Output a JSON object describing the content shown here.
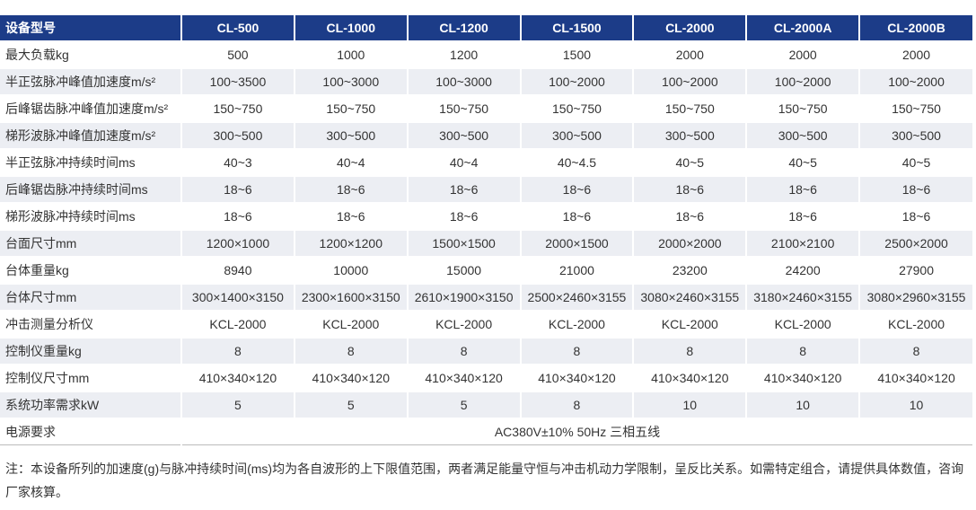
{
  "table": {
    "header": [
      "设备型号",
      "CL-500",
      "CL-1000",
      "CL-1200",
      "CL-1500",
      "CL-2000",
      "CL-2000A",
      "CL-2000B"
    ],
    "rows": [
      [
        "最大负载kg",
        "500",
        "1000",
        "1200",
        "1500",
        "2000",
        "2000",
        "2000"
      ],
      [
        "半正弦脉冲峰值加速度m/s²",
        "100~3500",
        "100~3000",
        "100~3000",
        "100~2000",
        "100~2000",
        "100~2000",
        "100~2000"
      ],
      [
        "后峰锯齿脉冲峰值加速度m/s²",
        "150~750",
        "150~750",
        "150~750",
        "150~750",
        "150~750",
        "150~750",
        "150~750"
      ],
      [
        "梯形波脉冲峰值加速度m/s²",
        "300~500",
        "300~500",
        "300~500",
        "300~500",
        "300~500",
        "300~500",
        "300~500"
      ],
      [
        "半正弦脉冲持续时间ms",
        "40~3",
        "40~4",
        "40~4",
        "40~4.5",
        "40~5",
        "40~5",
        "40~5"
      ],
      [
        "后峰锯齿脉冲持续时间ms",
        "18~6",
        "18~6",
        "18~6",
        "18~6",
        "18~6",
        "18~6",
        "18~6"
      ],
      [
        "梯形波脉冲持续时间ms",
        "18~6",
        "18~6",
        "18~6",
        "18~6",
        "18~6",
        "18~6",
        "18~6"
      ],
      [
        "台面尺寸mm",
        "1200×1000",
        "1200×1200",
        "1500×1500",
        "2000×1500",
        "2000×2000",
        "2100×2100",
        "2500×2000"
      ],
      [
        "台体重量kg",
        "8940",
        "10000",
        "15000",
        "21000",
        "23200",
        "24200",
        "27900"
      ],
      [
        "台体尺寸mm",
        "300×1400×3150",
        "2300×1600×3150",
        "2610×1900×3150",
        "2500×2460×3155",
        "3080×2460×3155",
        "3180×2460×3155",
        "3080×2960×3155"
      ],
      [
        "冲击测量分析仪",
        "KCL-2000",
        "KCL-2000",
        "KCL-2000",
        "KCL-2000",
        "KCL-2000",
        "KCL-2000",
        "KCL-2000"
      ],
      [
        "控制仪重量kg",
        "8",
        "8",
        "8",
        "8",
        "8",
        "8",
        "8"
      ],
      [
        "控制仪尺寸mm",
        "410×340×120",
        "410×340×120",
        "410×340×120",
        "410×340×120",
        "410×340×120",
        "410×340×120",
        "410×340×120"
      ],
      [
        "系统功率需求kW",
        "5",
        "5",
        "5",
        "8",
        "10",
        "10",
        "10"
      ],
      [
        "电源要求",
        "AC380V±10% 50Hz 三相五线"
      ]
    ]
  },
  "note": "注：本设备所列的加速度(g)与脉冲持续时间(ms)均为各自波形的上下限值范围，两者满足能量守恒与冲击机动力学限制，呈反比关系。如需特定组合，请提供具体数值，咨询厂家核算。"
}
